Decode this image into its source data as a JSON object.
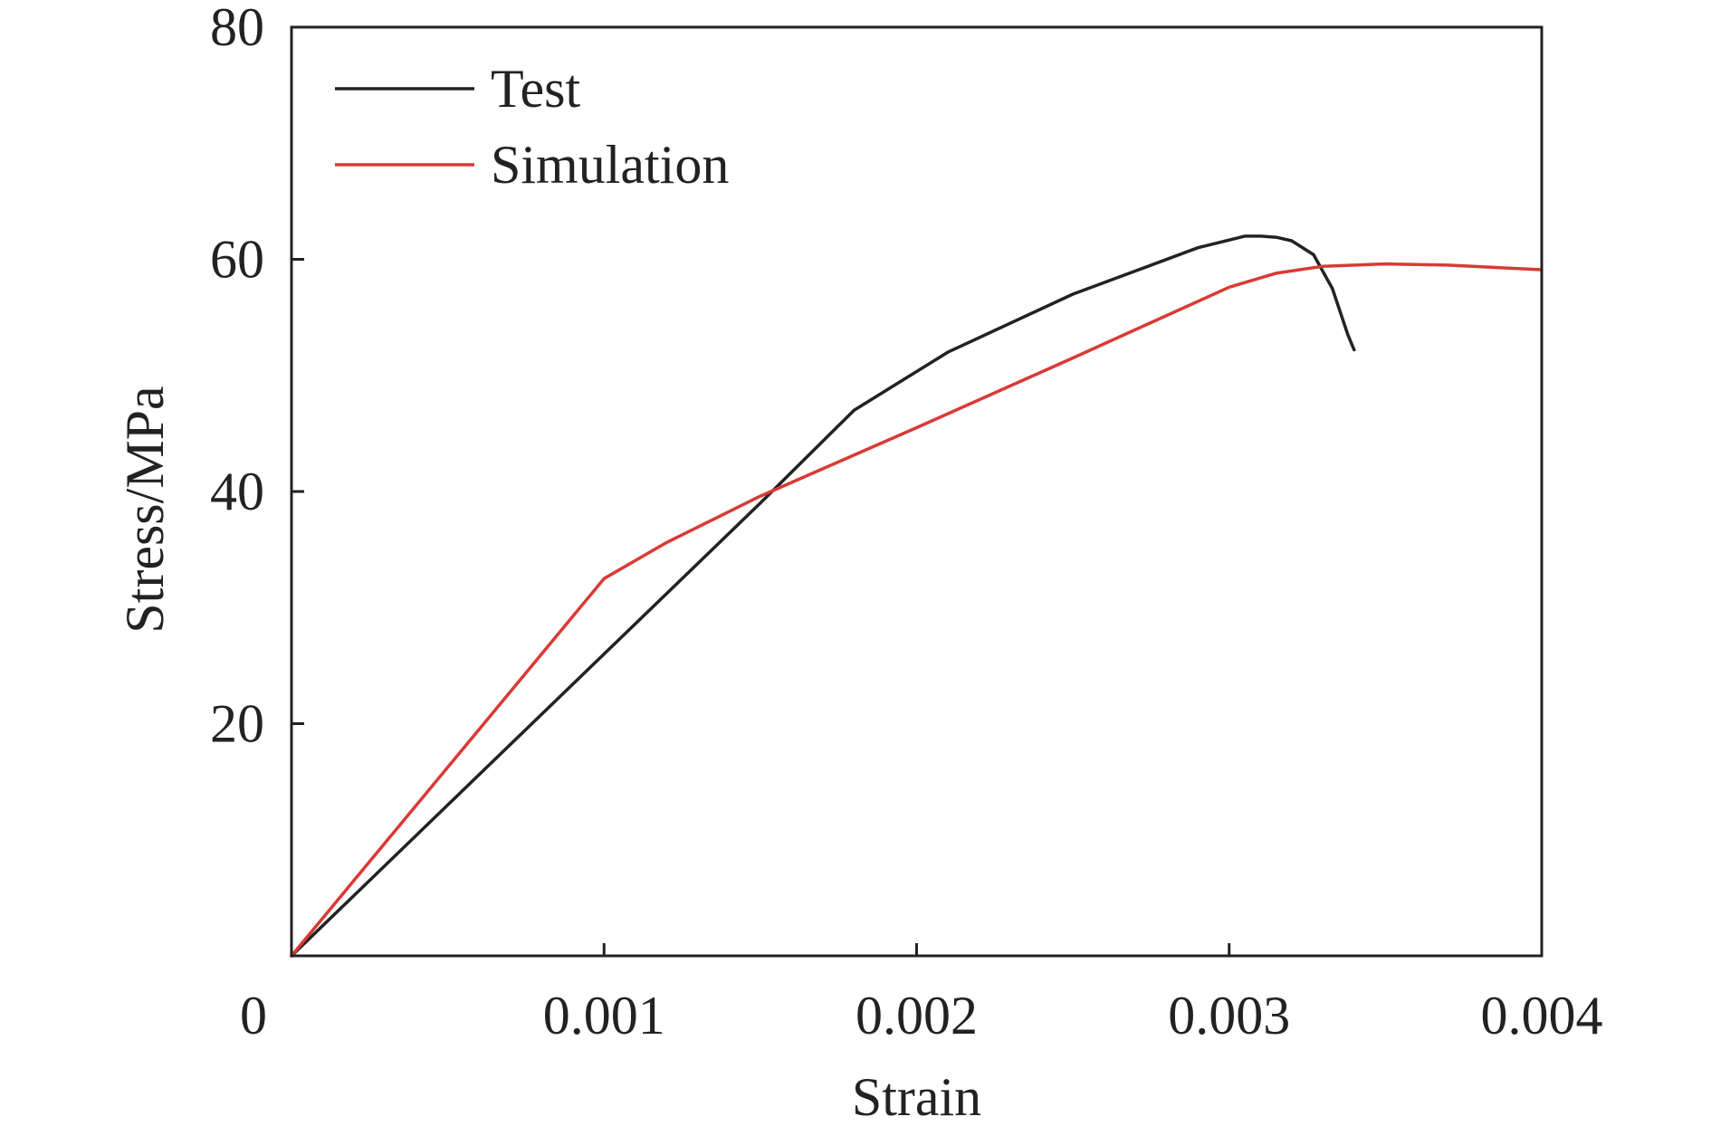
{
  "chart_data": {
    "type": "line",
    "title": "",
    "xlabel": "Strain",
    "ylabel": "Stress/MPa",
    "xlim": [
      0,
      0.004
    ],
    "ylim": [
      0,
      80
    ],
    "x_ticks": [
      0,
      0.001,
      0.002,
      0.003,
      0.004
    ],
    "x_tick_labels": [
      "0",
      "0.001",
      "0.002",
      "0.003",
      "0.004"
    ],
    "y_ticks": [
      20,
      40,
      60,
      80
    ],
    "y_tick_labels": [
      "20",
      "40",
      "60",
      "80"
    ],
    "grid": false,
    "legend_position": "top-left",
    "series": [
      {
        "name": "Test",
        "color": "#222222",
        "points": [
          [
            0,
            0
          ],
          [
            0.0005,
            13
          ],
          [
            0.001,
            26
          ],
          [
            0.0015,
            39
          ],
          [
            0.0018,
            47
          ],
          [
            0.0021,
            52
          ],
          [
            0.0025,
            57
          ],
          [
            0.0029,
            61
          ],
          [
            0.00305,
            62
          ],
          [
            0.0031,
            62
          ],
          [
            0.00315,
            61.9
          ],
          [
            0.0032,
            61.6
          ],
          [
            0.00327,
            60.4
          ],
          [
            0.00333,
            57.5
          ],
          [
            0.00338,
            53.5
          ],
          [
            0.0034,
            52.2
          ]
        ]
      },
      {
        "name": "Simulation",
        "color": "#d93a35",
        "points": [
          [
            0,
            0
          ],
          [
            0.001,
            32.5
          ],
          [
            0.0012,
            35.6
          ],
          [
            0.0015,
            39.6
          ],
          [
            0.002,
            45.5
          ],
          [
            0.0025,
            51.5
          ],
          [
            0.003,
            57.6
          ],
          [
            0.00315,
            58.8
          ],
          [
            0.0033,
            59.4
          ],
          [
            0.0035,
            59.6
          ],
          [
            0.0037,
            59.5
          ],
          [
            0.004,
            59.1
          ]
        ]
      }
    ]
  }
}
